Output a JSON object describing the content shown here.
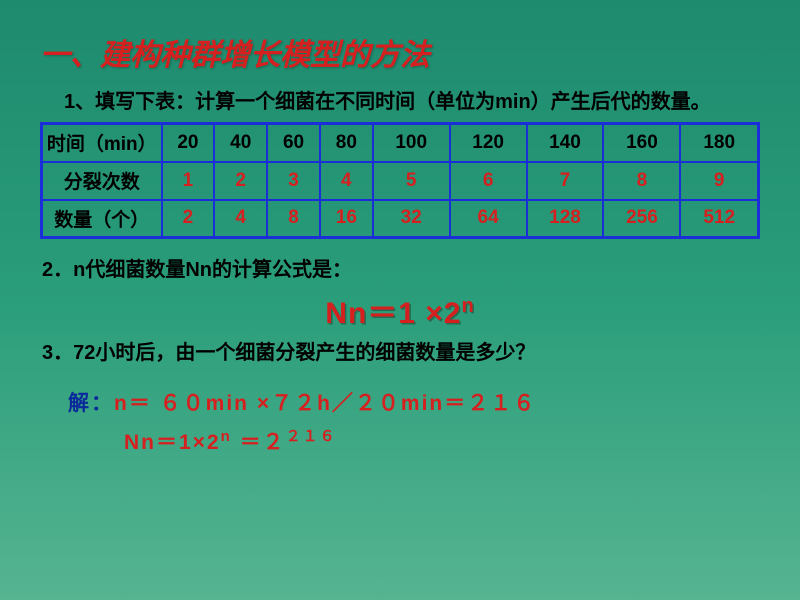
{
  "title": "一、建构种群增长模型的方法",
  "sub1": "1、填写下表：计算一个细菌在不同时间（单位为min）产生后代的数量。",
  "table": {
    "row1_label": "时间（min）",
    "row2_label": "分裂次数",
    "row3_label": "数量（个）",
    "times": [
      "20",
      "40",
      "60",
      "80",
      "100",
      "120",
      "140",
      "160",
      "180"
    ],
    "splits": [
      "1",
      "2",
      "3",
      "4",
      "5",
      "6",
      "7",
      "8",
      "9"
    ],
    "counts": [
      "2",
      "4",
      "8",
      "16",
      "32",
      "64",
      "128",
      "256",
      "512"
    ],
    "border_color": "#1a2fd8",
    "header_color": "#000000",
    "value_color": "#d62020"
  },
  "sub2": "2．n代细菌数量Nn的计算公式是：",
  "formula_base": "Nn＝1 ×2",
  "formula_exp": "n",
  "sub3": "3．72小时后，由一个细菌分裂产生的细菌数量是多少？",
  "solution": {
    "label": "解：",
    "line1": "n＝ ６０min ×７２h／２０min＝２１６",
    "line2_a": "Nn＝1×2",
    "line2_exp1": "n",
    "line2_b": " ＝２",
    "line2_exp2": "２１６"
  },
  "colors": {
    "title": "#d62020",
    "text": "#000000",
    "solution_label": "#0a2a9c",
    "bg_top": "#1e8a6e",
    "bg_bottom": "#56b491"
  }
}
